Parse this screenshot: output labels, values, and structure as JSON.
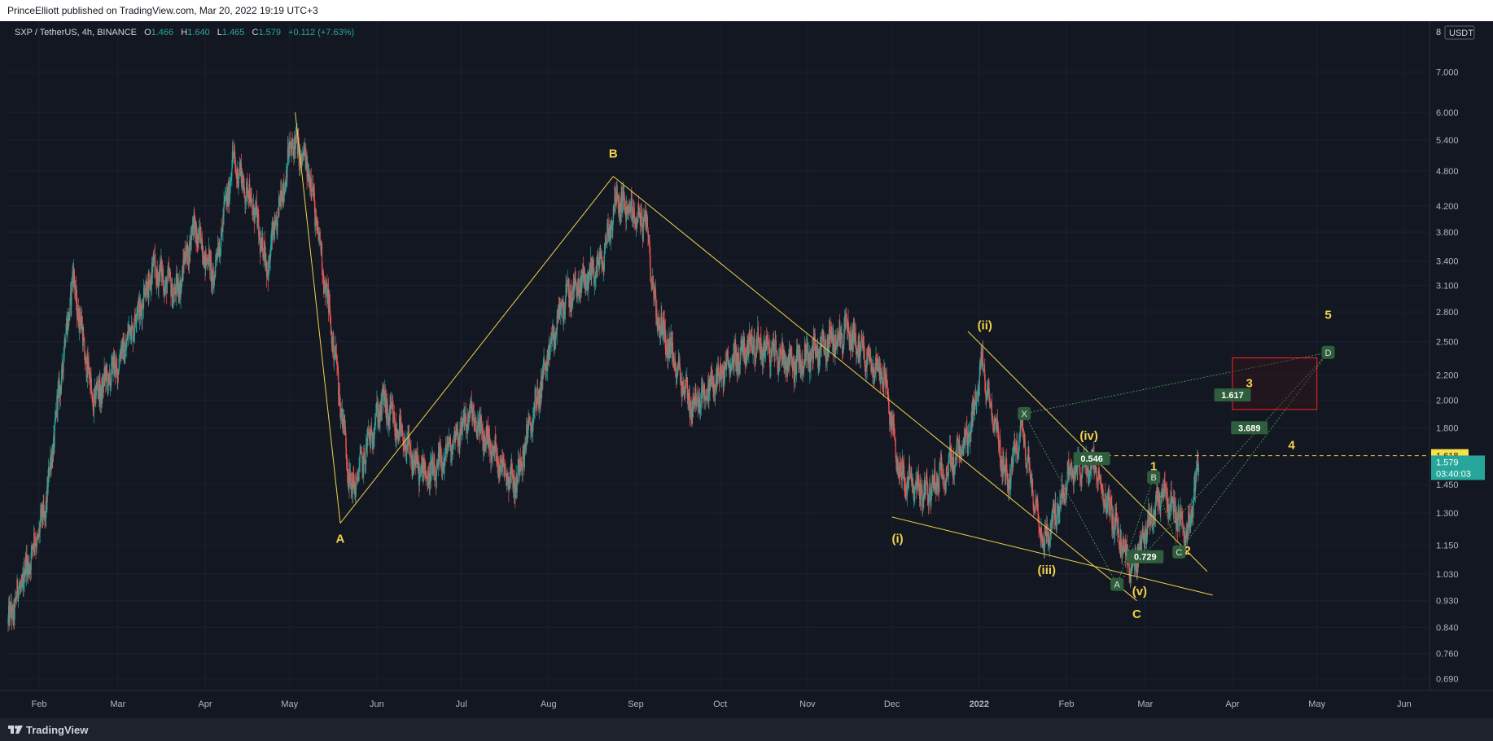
{
  "header": {
    "published": "PrinceElliott published on TradingView.com, Mar 20, 2022 19:19 UTC+3"
  },
  "footer": {
    "brand": "TradingView",
    "logo_icon": "tradingview-logo-icon"
  },
  "legend": {
    "symbol": "SXP / TetherUS, 4h, BINANCE",
    "o_label": "O",
    "o_value": "1.466",
    "h_label": "H",
    "h_value": "1.640",
    "l_label": "L",
    "l_value": "1.465",
    "c_label": "C",
    "c_value": "1.579",
    "change": "+0.112 (+7.63%)"
  },
  "colors": {
    "background": "#131722",
    "up": "#26a69a",
    "down": "#ef5350",
    "wave": "#f0d34a",
    "badge": "#2e5e3b",
    "target_box": "#ff2020"
  },
  "chart_data": {
    "type": "candlestick",
    "title": "SXP / TetherUS, 4h, BINANCE",
    "y_scale": "log",
    "ylim": [
      0.66,
      8.5
    ],
    "xlim": [
      "2021-01-21",
      "2022-06-10"
    ],
    "y_axis_unit": "USDT",
    "y_axis_top_label": "8",
    "y_ticks": [
      "0.690",
      "0.760",
      "0.840",
      "0.930",
      "1.030",
      "1.150",
      "1.300",
      "1.450",
      "1.800",
      "2.000",
      "2.200",
      "2.500",
      "2.800",
      "3.100",
      "3.400",
      "3.800",
      "4.200",
      "4.800",
      "5.400",
      "6.000",
      "7.000"
    ],
    "x_ticks": [
      {
        "label": "Feb",
        "date": "2021-02-01"
      },
      {
        "label": "Mar",
        "date": "2021-03-01"
      },
      {
        "label": "Apr",
        "date": "2021-04-01"
      },
      {
        "label": "May",
        "date": "2021-05-01"
      },
      {
        "label": "Jun",
        "date": "2021-06-01"
      },
      {
        "label": "Jul",
        "date": "2021-07-01"
      },
      {
        "label": "Aug",
        "date": "2021-08-01"
      },
      {
        "label": "Sep",
        "date": "2021-09-01"
      },
      {
        "label": "Oct",
        "date": "2021-10-01"
      },
      {
        "label": "Nov",
        "date": "2021-11-01"
      },
      {
        "label": "Dec",
        "date": "2021-12-01"
      },
      {
        "label": "2022",
        "date": "2022-01-01"
      },
      {
        "label": "Feb",
        "date": "2022-02-01"
      },
      {
        "label": "Mar",
        "date": "2022-03-01"
      },
      {
        "label": "Apr",
        "date": "2022-04-01"
      },
      {
        "label": "May",
        "date": "2022-05-01"
      },
      {
        "label": "Jun",
        "date": "2022-06-01"
      }
    ],
    "price_path": [
      [
        "2021-01-21",
        0.85
      ],
      [
        "2021-02-03",
        1.3
      ],
      [
        "2021-02-13",
        3.2
      ],
      [
        "2021-02-20",
        2.0
      ],
      [
        "2021-03-01",
        2.3
      ],
      [
        "2021-03-14",
        3.3
      ],
      [
        "2021-03-22",
        3.0
      ],
      [
        "2021-03-28",
        3.9
      ],
      [
        "2021-04-04",
        3.2
      ],
      [
        "2021-04-11",
        5.0
      ],
      [
        "2021-04-18",
        4.2
      ],
      [
        "2021-04-23",
        3.3
      ],
      [
        "2021-05-02",
        5.4
      ],
      [
        "2021-05-08",
        4.8
      ],
      [
        "2021-05-17",
        2.4
      ],
      [
        "2021-05-23",
        1.4
      ],
      [
        "2021-06-03",
        2.0
      ],
      [
        "2021-06-15",
        1.55
      ],
      [
        "2021-06-21",
        1.5
      ],
      [
        "2021-07-04",
        1.9
      ],
      [
        "2021-07-20",
        1.45
      ],
      [
        "2021-08-06",
        2.9
      ],
      [
        "2021-08-20",
        3.4
      ],
      [
        "2021-08-25",
        4.3
      ],
      [
        "2021-09-05",
        3.9
      ],
      [
        "2021-09-08",
        2.8
      ],
      [
        "2021-09-21",
        1.95
      ],
      [
        "2021-10-12",
        2.5
      ],
      [
        "2021-10-28",
        2.3
      ],
      [
        "2021-11-15",
        2.6
      ],
      [
        "2021-11-28",
        2.2
      ],
      [
        "2021-12-04",
        1.5
      ],
      [
        "2021-12-13",
        1.4
      ],
      [
        "2021-12-28",
        1.7
      ],
      [
        "2022-01-02",
        2.3
      ],
      [
        "2022-01-11",
        1.45
      ],
      [
        "2022-01-16",
        1.8
      ],
      [
        "2022-01-24",
        1.15
      ],
      [
        "2022-02-03",
        1.55
      ],
      [
        "2022-02-11",
        1.55
      ],
      [
        "2022-02-24",
        1.05
      ],
      [
        "2022-03-07",
        1.42
      ],
      [
        "2022-03-16",
        1.2
      ],
      [
        "2022-03-20",
        1.579
      ]
    ],
    "annotations": [
      {
        "text": "A",
        "date": "2021-05-19",
        "price": 1.16
      },
      {
        "text": "B",
        "date": "2021-08-24",
        "price": 5.05
      },
      {
        "text": "C",
        "date": "2022-02-26",
        "price": 0.87
      },
      {
        "text": "(i)",
        "date": "2021-12-03",
        "price": 1.16
      },
      {
        "text": "(ii)",
        "date": "2022-01-03",
        "price": 2.62
      },
      {
        "text": "(iii)",
        "date": "2022-01-25",
        "price": 1.03
      },
      {
        "text": "(iv)",
        "date": "2022-02-09",
        "price": 1.72
      },
      {
        "text": "(v)",
        "date": "2022-02-27",
        "price": 0.95
      },
      {
        "text": "1",
        "date": "2022-03-04",
        "price": 1.53
      },
      {
        "text": "2",
        "date": "2022-03-16",
        "price": 1.11
      },
      {
        "text": "3",
        "date": "2022-04-07",
        "price": 2.1
      },
      {
        "text": "4",
        "date": "2022-04-22",
        "price": 1.66
      },
      {
        "text": "5",
        "date": "2022-05-05",
        "price": 2.73
      }
    ],
    "fib_labels": [
      {
        "text": "1.617",
        "date": "2022-04-01",
        "price": 2.04
      },
      {
        "text": "3.689",
        "date": "2022-04-07",
        "price": 1.8
      },
      {
        "text": "0.546",
        "date": "2022-02-10",
        "price": 1.6
      },
      {
        "text": "0.729",
        "date": "2022-03-01",
        "price": 1.1
      }
    ],
    "pattern_points": [
      {
        "text": "X",
        "date": "2022-01-17",
        "price": 1.9
      },
      {
        "text": "A",
        "date": "2022-02-19",
        "price": 0.99
      },
      {
        "text": "B",
        "date": "2022-03-04",
        "price": 1.49
      },
      {
        "text": "C",
        "date": "2022-03-13",
        "price": 1.12
      },
      {
        "text": "D",
        "date": "2022-05-05",
        "price": 2.4
      }
    ],
    "current_price": {
      "value": "1.579",
      "countdown": "03:40:03"
    },
    "level_line": {
      "value": "1.618"
    },
    "target_zone": {
      "from": "2022-04-01",
      "to": "2022-05-01",
      "low": 1.93,
      "high": 2.35
    }
  }
}
